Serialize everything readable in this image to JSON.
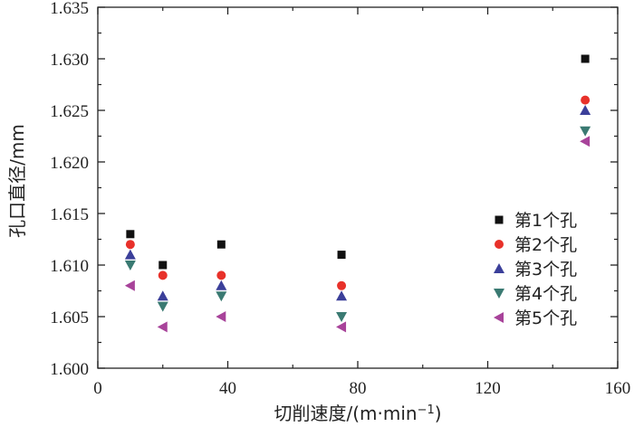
{
  "chart_data": {
    "type": "scatter",
    "xlabel": "切削速度/(m·min",
    "xlabel_sup": "−1",
    "xlabel_tail": ")",
    "ylabel": "孔口直径/mm",
    "xlim": [
      0,
      160
    ],
    "ylim": [
      1.6,
      1.635
    ],
    "xticks": [
      "0",
      "40",
      "80",
      "120",
      "160"
    ],
    "yticks": [
      "1.600",
      "1.605",
      "1.610",
      "1.615",
      "1.620",
      "1.625",
      "1.630",
      "1.635"
    ],
    "legend_position": "bottom-right",
    "grid": false,
    "series": [
      {
        "name": "第1个孔",
        "marker": "square",
        "color": "#111111",
        "points": [
          [
            10,
            1.613
          ],
          [
            20,
            1.61
          ],
          [
            38,
            1.612
          ],
          [
            75,
            1.611
          ],
          [
            150,
            1.63
          ]
        ]
      },
      {
        "name": "第2个孔",
        "marker": "circle",
        "color": "#e8312a",
        "points": [
          [
            10,
            1.612
          ],
          [
            20,
            1.609
          ],
          [
            38,
            1.609
          ],
          [
            75,
            1.608
          ],
          [
            150,
            1.626
          ]
        ]
      },
      {
        "name": "第3个孔",
        "marker": "triangle-up",
        "color": "#3b3f9a",
        "points": [
          [
            10,
            1.611
          ],
          [
            20,
            1.607
          ],
          [
            38,
            1.608
          ],
          [
            75,
            1.607
          ],
          [
            150,
            1.625
          ]
        ]
      },
      {
        "name": "第4个孔",
        "marker": "triangle-down",
        "color": "#3a7a72",
        "points": [
          [
            10,
            1.61
          ],
          [
            20,
            1.606
          ],
          [
            38,
            1.607
          ],
          [
            75,
            1.605
          ],
          [
            150,
            1.623
          ]
        ]
      },
      {
        "name": "第5个孔",
        "marker": "triangle-left",
        "color": "#a8439a",
        "points": [
          [
            10,
            1.608
          ],
          [
            20,
            1.604
          ],
          [
            38,
            1.605
          ],
          [
            75,
            1.604
          ],
          [
            150,
            1.622
          ]
        ]
      }
    ]
  }
}
